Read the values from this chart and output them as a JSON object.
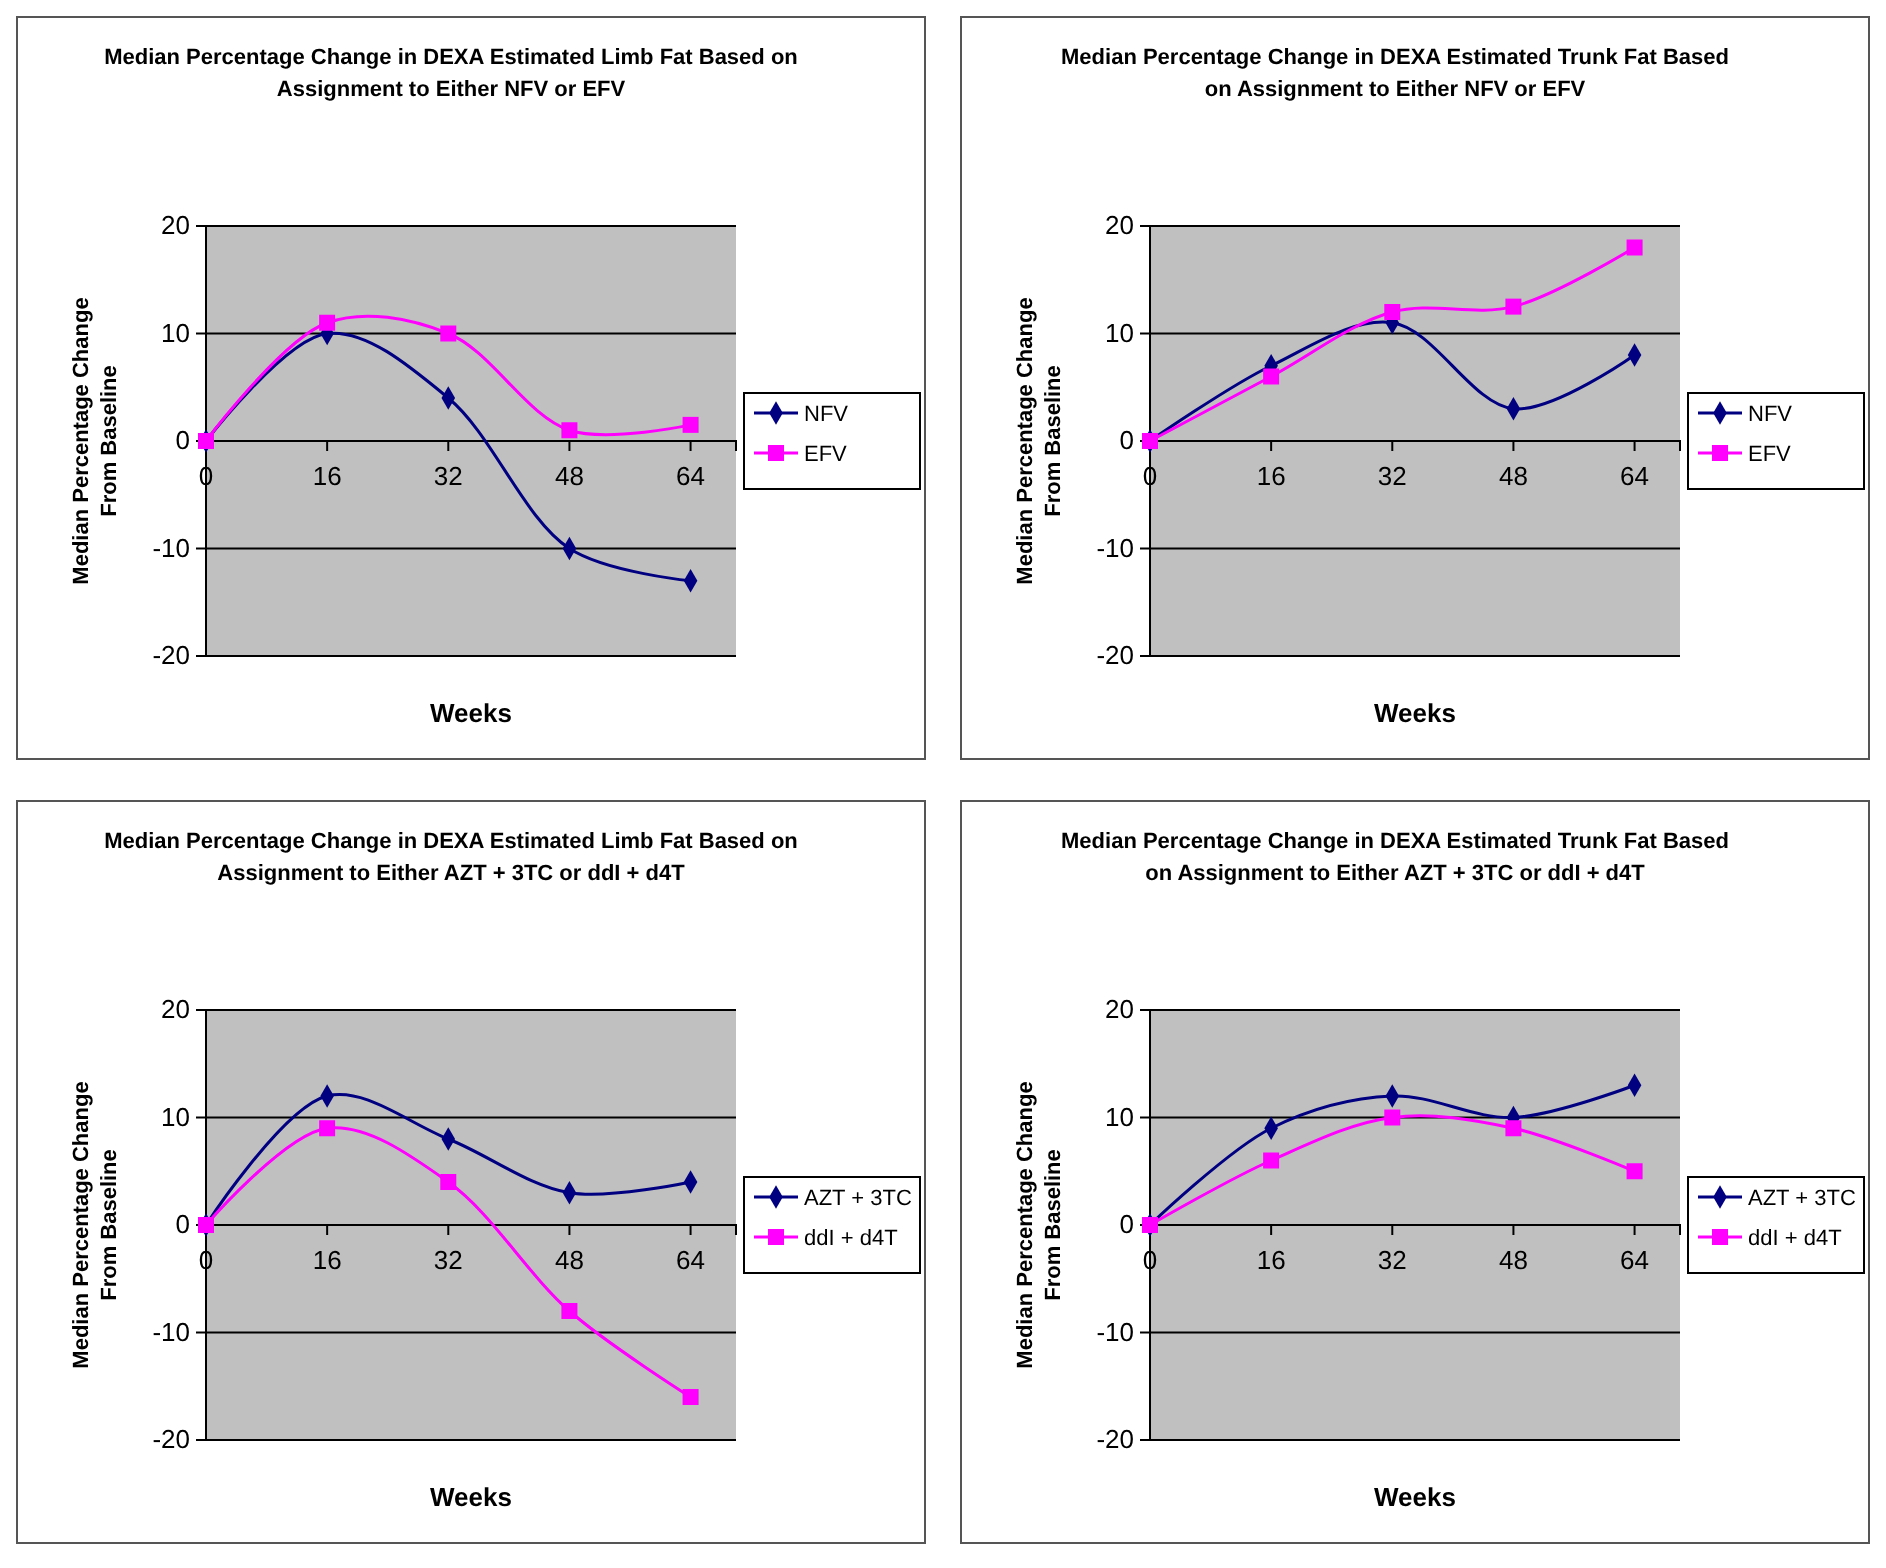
{
  "chart_data": [
    {
      "type": "line",
      "title": "Median Percentage Change in DEXA Estimated Limb Fat Based on Assignment to Either NFV or EFV",
      "xlabel": "Weeks",
      "ylabel": "Median Percentage Change From Baseline",
      "x": [
        0,
        16,
        32,
        48,
        64
      ],
      "xlim": [
        0,
        70
      ],
      "xticks": [
        0,
        16,
        32,
        48,
        64
      ],
      "ylim": [
        -20,
        20
      ],
      "yticks": [
        -20,
        -10,
        0,
        10,
        20
      ],
      "grid": "y",
      "legend": "right",
      "series": [
        {
          "name": "NFV",
          "color": "#000080",
          "marker": "diamond",
          "values": [
            0,
            10,
            4,
            -10,
            -13
          ]
        },
        {
          "name": "EFV",
          "color": "#ff00ff",
          "marker": "square",
          "values": [
            0,
            11,
            10,
            1,
            1.5
          ]
        }
      ]
    },
    {
      "type": "line",
      "title": "Median Percentage Change in DEXA Estimated Trunk Fat Based on Assignment to Either NFV or EFV",
      "xlabel": "Weeks",
      "ylabel": "Median Percentage Change From Baseline",
      "x": [
        0,
        16,
        32,
        48,
        64
      ],
      "xlim": [
        0,
        70
      ],
      "xticks": [
        0,
        16,
        32,
        48,
        64
      ],
      "ylim": [
        -20,
        20
      ],
      "yticks": [
        -20,
        -10,
        0,
        10,
        20
      ],
      "grid": "y",
      "legend": "right",
      "series": [
        {
          "name": "NFV",
          "color": "#000080",
          "marker": "diamond",
          "values": [
            0,
            7,
            11,
            3,
            8
          ]
        },
        {
          "name": "EFV",
          "color": "#ff00ff",
          "marker": "square",
          "values": [
            0,
            6,
            12,
            12.5,
            18
          ]
        }
      ]
    },
    {
      "type": "line",
      "title": "Median Percentage Change in DEXA Estimated Limb Fat Based on Assignment to Either AZT + 3TC or ddI + d4T",
      "xlabel": "Weeks",
      "ylabel": "Median Percentage Change From Baseline",
      "x": [
        0,
        16,
        32,
        48,
        64
      ],
      "xlim": [
        0,
        70
      ],
      "xticks": [
        0,
        16,
        32,
        48,
        64
      ],
      "ylim": [
        -20,
        20
      ],
      "yticks": [
        -20,
        -10,
        0,
        10,
        20
      ],
      "grid": "y",
      "legend": "right",
      "series": [
        {
          "name": "AZT + 3TC",
          "color": "#000080",
          "marker": "diamond",
          "values": [
            0,
            12,
            8,
            3,
            4
          ]
        },
        {
          "name": "ddI + d4T",
          "color": "#ff00ff",
          "marker": "square",
          "values": [
            0,
            9,
            4,
            -8,
            -16
          ]
        }
      ]
    },
    {
      "type": "line",
      "title": "Median Percentage Change in DEXA Estimated Trunk Fat Based on Assignment to Either AZT + 3TC or ddI + d4T",
      "xlabel": "Weeks",
      "ylabel": "Median Percentage Change From Baseline",
      "x": [
        0,
        16,
        32,
        48,
        64
      ],
      "xlim": [
        0,
        70
      ],
      "xticks": [
        0,
        16,
        32,
        48,
        64
      ],
      "ylim": [
        -20,
        20
      ],
      "yticks": [
        -20,
        -10,
        0,
        10,
        20
      ],
      "grid": "y",
      "legend": "right",
      "series": [
        {
          "name": "AZT + 3TC",
          "color": "#000080",
          "marker": "diamond",
          "values": [
            0,
            9,
            12,
            10,
            13
          ]
        },
        {
          "name": "ddI + d4T",
          "color": "#ff00ff",
          "marker": "square",
          "values": [
            0,
            6,
            10,
            9,
            5
          ]
        }
      ]
    }
  ]
}
